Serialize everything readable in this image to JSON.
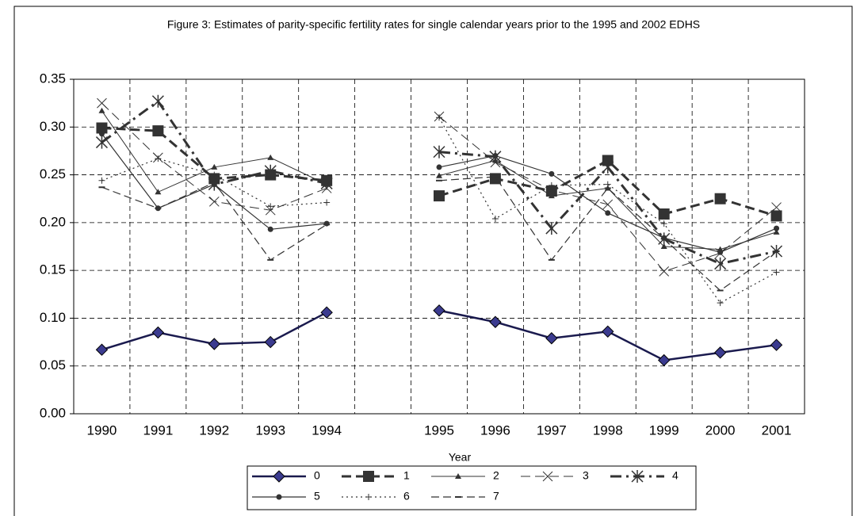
{
  "chart_data": {
    "type": "line",
    "title": "Figure 3: Estimates of parity-specific fertility rates for single calendar years prior to the 1995 and 2002 EDHS",
    "x_label": "Year",
    "categories": [
      "1990",
      "1991",
      "1992",
      "1993",
      "1994",
      null,
      "1995",
      "1996",
      "1997",
      "1998",
      "1999",
      "2000",
      "2001"
    ],
    "ylim": [
      0,
      0.35
    ],
    "yticks": [
      {
        "value": 0,
        "label": "0.00"
      },
      {
        "value": 0.05,
        "label": "0.05"
      },
      {
        "value": 0.1,
        "label": "0.10"
      },
      {
        "value": 0.15,
        "label": "0.15"
      },
      {
        "value": 0.2,
        "label": "0.20"
      },
      {
        "value": 0.25,
        "label": "0.25"
      },
      {
        "value": 0.3,
        "label": "0.30"
      },
      {
        "value": 0.35,
        "label": "0.35"
      }
    ],
    "grid": true,
    "legend": "bottom",
    "series": [
      {
        "name": "0",
        "color": "#1a1a4e",
        "marker": "diamond",
        "line_style": "solid",
        "line_width": 2.5,
        "values": [
          0.067,
          0.085,
          0.073,
          0.075,
          0.106,
          null,
          0.108,
          0.096,
          0.079,
          0.086,
          0.056,
          0.064,
          0.072
        ]
      },
      {
        "name": "1",
        "color": "#333333",
        "marker": "square",
        "line_style": "dashed",
        "line_width": 3,
        "values": [
          0.299,
          0.296,
          0.246,
          0.25,
          0.244,
          null,
          0.228,
          0.246,
          0.233,
          0.265,
          0.209,
          0.225,
          0.207
        ]
      },
      {
        "name": "2",
        "color": "#333333",
        "marker": "triangle",
        "line_style": "solid",
        "line_width": 1,
        "values": [
          0.317,
          0.232,
          0.258,
          0.268,
          0.24,
          null,
          0.249,
          0.265,
          0.228,
          0.236,
          0.175,
          0.172,
          0.19
        ]
      },
      {
        "name": "3",
        "color": "#333333",
        "marker": "cross",
        "line_style": "dashed",
        "line_width": 1,
        "values": [
          0.325,
          0.268,
          0.222,
          0.213,
          0.236,
          null,
          0.311,
          0.263,
          0.234,
          0.219,
          0.149,
          0.168,
          0.216
        ]
      },
      {
        "name": "4",
        "color": "#333333",
        "marker": "asterisk",
        "line_style": "dash-dot",
        "line_width": 3,
        "values": [
          0.284,
          0.327,
          0.24,
          0.254,
          0.241,
          null,
          0.274,
          0.269,
          0.194,
          0.258,
          0.183,
          0.157,
          0.17
        ]
      },
      {
        "name": "5",
        "color": "#333333",
        "marker": "circle",
        "line_style": "solid",
        "line_width": 1.2,
        "values": [
          0.293,
          0.215,
          0.24,
          0.193,
          0.199,
          null,
          0.258,
          0.27,
          0.251,
          0.21,
          0.184,
          0.169,
          0.194
        ]
      },
      {
        "name": "6",
        "color": "#333333",
        "marker": "plus",
        "line_style": "dotted",
        "line_width": 1.2,
        "values": [
          0.244,
          0.267,
          0.25,
          0.217,
          0.221,
          null,
          0.31,
          0.204,
          0.239,
          0.24,
          0.199,
          0.116,
          0.148
        ]
      },
      {
        "name": "7",
        "color": "#333333",
        "marker": "dash",
        "line_style": "long-dash",
        "line_width": 1.2,
        "values": [
          0.237,
          0.215,
          0.242,
          0.161,
          0.198,
          null,
          0.244,
          0.248,
          0.161,
          0.236,
          0.183,
          0.129,
          0.17
        ]
      }
    ]
  }
}
